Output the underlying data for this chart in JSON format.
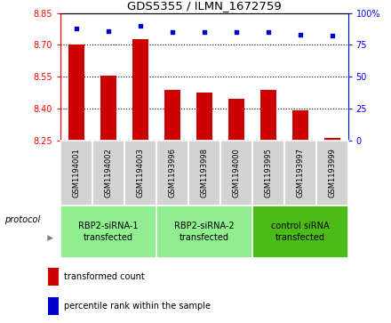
{
  "title": "GDS5355 / ILMN_1672759",
  "samples": [
    "GSM1194001",
    "GSM1194002",
    "GSM1194003",
    "GSM1193996",
    "GSM1193998",
    "GSM1194000",
    "GSM1193995",
    "GSM1193997",
    "GSM1193999"
  ],
  "red_values": [
    8.7,
    8.555,
    8.725,
    8.487,
    8.475,
    8.445,
    8.487,
    8.393,
    8.262
  ],
  "blue_values": [
    88,
    86,
    90,
    85,
    85,
    85,
    85,
    83,
    82
  ],
  "ylim_left": [
    8.25,
    8.85
  ],
  "ylim_right": [
    0,
    100
  ],
  "yticks_left": [
    8.25,
    8.4,
    8.55,
    8.7,
    8.85
  ],
  "yticks_right": [
    0,
    25,
    50,
    75,
    100
  ],
  "groups": [
    {
      "label": "RBP2-siRNA-1\ntransfected",
      "indices": [
        0,
        1,
        2
      ],
      "color": "#90EE90"
    },
    {
      "label": "RBP2-siRNA-2\ntransfected",
      "indices": [
        3,
        4,
        5
      ],
      "color": "#90EE90"
    },
    {
      "label": "control siRNA\ntransfected",
      "indices": [
        6,
        7,
        8
      ],
      "color": "#4CBB17"
    }
  ],
  "bar_color": "#CC0000",
  "dot_color": "#0000CC",
  "bg_color": "#D3D3D3",
  "protocol_label": "protocol",
  "legend_bar_label": "transformed count",
  "legend_dot_label": "percentile rank within the sample",
  "bar_width": 0.5,
  "group_colors": [
    "#90EE90",
    "#90EE90",
    "#4CBB17"
  ]
}
